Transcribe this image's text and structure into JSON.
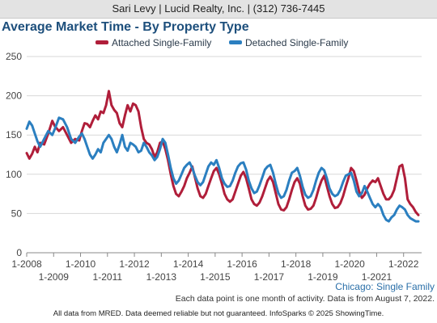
{
  "header": {
    "agent_text": "Sari Levy | Lucid Realty, Inc. | (312) 736-7445"
  },
  "chart_data": {
    "type": "line",
    "title": "Average Market Time - By Property Type",
    "xlabel": "",
    "ylabel": "",
    "xlim": [
      2008.0,
      2022.67
    ],
    "ylim": [
      0,
      250
    ],
    "yticks": [
      0,
      50,
      100,
      150,
      200,
      250
    ],
    "xticks_top": [
      "1-2008",
      "1-2010",
      "1-2012",
      "1-2014",
      "1-2016",
      "1-2018",
      "1-2020",
      "1-2022"
    ],
    "xticks_bottom": [
      "1-2009",
      "1-2011",
      "1-2013",
      "1-2015",
      "1-2017",
      "1-2019",
      "1-2021"
    ],
    "grid": true,
    "legend_position": "top",
    "series": [
      {
        "name": "Attached Single-Family",
        "color": "#b01e3a",
        "points": [
          [
            2008.0,
            127
          ],
          [
            2008.1,
            120
          ],
          [
            2008.2,
            126
          ],
          [
            2008.3,
            135
          ],
          [
            2008.4,
            128
          ],
          [
            2008.5,
            140
          ],
          [
            2008.65,
            138
          ],
          [
            2008.8,
            152
          ],
          [
            2008.95,
            168
          ],
          [
            2009.05,
            161
          ],
          [
            2009.2,
            155
          ],
          [
            2009.35,
            160
          ],
          [
            2009.5,
            150
          ],
          [
            2009.65,
            140
          ],
          [
            2009.8,
            145
          ],
          [
            2009.95,
            143
          ],
          [
            2010.05,
            155
          ],
          [
            2010.15,
            165
          ],
          [
            2010.25,
            164
          ],
          [
            2010.35,
            160
          ],
          [
            2010.45,
            168
          ],
          [
            2010.55,
            175
          ],
          [
            2010.65,
            170
          ],
          [
            2010.75,
            180
          ],
          [
            2010.85,
            178
          ],
          [
            2010.95,
            188
          ],
          [
            2011.05,
            206
          ],
          [
            2011.15,
            188
          ],
          [
            2011.25,
            182
          ],
          [
            2011.35,
            178
          ],
          [
            2011.45,
            165
          ],
          [
            2011.55,
            160
          ],
          [
            2011.65,
            175
          ],
          [
            2011.75,
            188
          ],
          [
            2011.85,
            180
          ],
          [
            2011.95,
            190
          ],
          [
            2012.05,
            188
          ],
          [
            2012.15,
            180
          ],
          [
            2012.25,
            160
          ],
          [
            2012.35,
            145
          ],
          [
            2012.45,
            140
          ],
          [
            2012.55,
            138
          ],
          [
            2012.65,
            132
          ],
          [
            2012.75,
            122
          ],
          [
            2012.85,
            128
          ],
          [
            2012.95,
            140
          ],
          [
            2013.05,
            142
          ],
          [
            2013.15,
            132
          ],
          [
            2013.25,
            118
          ],
          [
            2013.35,
            100
          ],
          [
            2013.45,
            85
          ],
          [
            2013.55,
            75
          ],
          [
            2013.65,
            72
          ],
          [
            2013.75,
            78
          ],
          [
            2013.85,
            85
          ],
          [
            2013.95,
            95
          ],
          [
            2014.05,
            102
          ],
          [
            2014.15,
            110
          ],
          [
            2014.25,
            96
          ],
          [
            2014.35,
            82
          ],
          [
            2014.45,
            72
          ],
          [
            2014.55,
            70
          ],
          [
            2014.65,
            75
          ],
          [
            2014.75,
            85
          ],
          [
            2014.85,
            95
          ],
          [
            2014.95,
            104
          ],
          [
            2015.05,
            108
          ],
          [
            2015.15,
            100
          ],
          [
            2015.25,
            88
          ],
          [
            2015.35,
            75
          ],
          [
            2015.45,
            68
          ],
          [
            2015.55,
            65
          ],
          [
            2015.65,
            68
          ],
          [
            2015.75,
            78
          ],
          [
            2015.85,
            88
          ],
          [
            2015.95,
            98
          ],
          [
            2016.05,
            103
          ],
          [
            2016.15,
            95
          ],
          [
            2016.25,
            82
          ],
          [
            2016.35,
            68
          ],
          [
            2016.45,
            62
          ],
          [
            2016.55,
            60
          ],
          [
            2016.65,
            64
          ],
          [
            2016.75,
            72
          ],
          [
            2016.85,
            82
          ],
          [
            2016.95,
            92
          ],
          [
            2017.05,
            97
          ],
          [
            2017.15,
            90
          ],
          [
            2017.25,
            76
          ],
          [
            2017.35,
            62
          ],
          [
            2017.45,
            55
          ],
          [
            2017.55,
            54
          ],
          [
            2017.65,
            58
          ],
          [
            2017.75,
            68
          ],
          [
            2017.85,
            80
          ],
          [
            2017.95,
            90
          ],
          [
            2018.05,
            95
          ],
          [
            2018.15,
            88
          ],
          [
            2018.25,
            72
          ],
          [
            2018.35,
            60
          ],
          [
            2018.45,
            55
          ],
          [
            2018.55,
            56
          ],
          [
            2018.65,
            60
          ],
          [
            2018.75,
            70
          ],
          [
            2018.85,
            82
          ],
          [
            2018.95,
            92
          ],
          [
            2019.05,
            98
          ],
          [
            2019.15,
            85
          ],
          [
            2019.25,
            72
          ],
          [
            2019.35,
            62
          ],
          [
            2019.45,
            57
          ],
          [
            2019.55,
            58
          ],
          [
            2019.65,
            63
          ],
          [
            2019.75,
            72
          ],
          [
            2019.85,
            84
          ],
          [
            2019.95,
            95
          ],
          [
            2020.05,
            108
          ],
          [
            2020.15,
            104
          ],
          [
            2020.25,
            92
          ],
          [
            2020.35,
            78
          ],
          [
            2020.45,
            70
          ],
          [
            2020.55,
            74
          ],
          [
            2020.65,
            82
          ],
          [
            2020.75,
            88
          ],
          [
            2020.85,
            92
          ],
          [
            2020.95,
            90
          ],
          [
            2021.05,
            95
          ],
          [
            2021.15,
            85
          ],
          [
            2021.25,
            75
          ],
          [
            2021.35,
            68
          ],
          [
            2021.45,
            68
          ],
          [
            2021.55,
            72
          ],
          [
            2021.65,
            80
          ],
          [
            2021.75,
            95
          ],
          [
            2021.85,
            110
          ],
          [
            2021.95,
            112
          ],
          [
            2022.05,
            95
          ],
          [
            2022.15,
            68
          ],
          [
            2022.25,
            62
          ],
          [
            2022.35,
            58
          ],
          [
            2022.45,
            52
          ],
          [
            2022.55,
            48
          ]
        ]
      },
      {
        "name": "Detached Single-Family",
        "color": "#2b7fc0",
        "points": [
          [
            2008.0,
            158
          ],
          [
            2008.1,
            167
          ],
          [
            2008.2,
            162
          ],
          [
            2008.3,
            152
          ],
          [
            2008.4,
            142
          ],
          [
            2008.5,
            135
          ],
          [
            2008.65,
            145
          ],
          [
            2008.8,
            155
          ],
          [
            2008.95,
            150
          ],
          [
            2009.05,
            158
          ],
          [
            2009.2,
            172
          ],
          [
            2009.35,
            170
          ],
          [
            2009.5,
            160
          ],
          [
            2009.65,
            145
          ],
          [
            2009.8,
            140
          ],
          [
            2009.95,
            148
          ],
          [
            2010.05,
            152
          ],
          [
            2010.15,
            145
          ],
          [
            2010.25,
            135
          ],
          [
            2010.35,
            125
          ],
          [
            2010.45,
            120
          ],
          [
            2010.55,
            125
          ],
          [
            2010.65,
            132
          ],
          [
            2010.75,
            128
          ],
          [
            2010.85,
            140
          ],
          [
            2010.95,
            145
          ],
          [
            2011.05,
            150
          ],
          [
            2011.15,
            145
          ],
          [
            2011.25,
            135
          ],
          [
            2011.35,
            128
          ],
          [
            2011.45,
            138
          ],
          [
            2011.55,
            150
          ],
          [
            2011.65,
            135
          ],
          [
            2011.75,
            130
          ],
          [
            2011.85,
            140
          ],
          [
            2011.95,
            138
          ],
          [
            2012.05,
            135
          ],
          [
            2012.15,
            128
          ],
          [
            2012.25,
            130
          ],
          [
            2012.35,
            140
          ],
          [
            2012.45,
            135
          ],
          [
            2012.55,
            128
          ],
          [
            2012.65,
            124
          ],
          [
            2012.75,
            118
          ],
          [
            2012.85,
            122
          ],
          [
            2012.95,
            132
          ],
          [
            2013.05,
            145
          ],
          [
            2013.15,
            140
          ],
          [
            2013.25,
            125
          ],
          [
            2013.35,
            108
          ],
          [
            2013.45,
            95
          ],
          [
            2013.55,
            88
          ],
          [
            2013.65,
            92
          ],
          [
            2013.75,
            100
          ],
          [
            2013.85,
            108
          ],
          [
            2013.95,
            112
          ],
          [
            2014.05,
            115
          ],
          [
            2014.15,
            108
          ],
          [
            2014.25,
            98
          ],
          [
            2014.35,
            90
          ],
          [
            2014.45,
            86
          ],
          [
            2014.55,
            90
          ],
          [
            2014.65,
            100
          ],
          [
            2014.75,
            110
          ],
          [
            2014.85,
            115
          ],
          [
            2014.95,
            112
          ],
          [
            2015.05,
            118
          ],
          [
            2015.15,
            108
          ],
          [
            2015.25,
            95
          ],
          [
            2015.35,
            88
          ],
          [
            2015.45,
            84
          ],
          [
            2015.55,
            85
          ],
          [
            2015.65,
            92
          ],
          [
            2015.75,
            102
          ],
          [
            2015.85,
            110
          ],
          [
            2015.95,
            114
          ],
          [
            2016.05,
            115
          ],
          [
            2016.15,
            106
          ],
          [
            2016.25,
            92
          ],
          [
            2016.35,
            82
          ],
          [
            2016.45,
            76
          ],
          [
            2016.55,
            78
          ],
          [
            2016.65,
            86
          ],
          [
            2016.75,
            96
          ],
          [
            2016.85,
            106
          ],
          [
            2016.95,
            110
          ],
          [
            2017.05,
            112
          ],
          [
            2017.15,
            102
          ],
          [
            2017.25,
            88
          ],
          [
            2017.35,
            76
          ],
          [
            2017.45,
            70
          ],
          [
            2017.55,
            72
          ],
          [
            2017.65,
            80
          ],
          [
            2017.75,
            92
          ],
          [
            2017.85,
            102
          ],
          [
            2017.95,
            104
          ],
          [
            2018.05,
            108
          ],
          [
            2018.15,
            98
          ],
          [
            2018.25,
            84
          ],
          [
            2018.35,
            74
          ],
          [
            2018.45,
            70
          ],
          [
            2018.55,
            72
          ],
          [
            2018.65,
            80
          ],
          [
            2018.75,
            92
          ],
          [
            2018.85,
            102
          ],
          [
            2018.95,
            108
          ],
          [
            2019.05,
            105
          ],
          [
            2019.15,
            95
          ],
          [
            2019.25,
            82
          ],
          [
            2019.35,
            75
          ],
          [
            2019.45,
            72
          ],
          [
            2019.55,
            74
          ],
          [
            2019.65,
            80
          ],
          [
            2019.75,
            90
          ],
          [
            2019.85,
            98
          ],
          [
            2019.95,
            100
          ],
          [
            2020.05,
            102
          ],
          [
            2020.15,
            92
          ],
          [
            2020.25,
            78
          ],
          [
            2020.35,
            72
          ],
          [
            2020.45,
            76
          ],
          [
            2020.55,
            85
          ],
          [
            2020.65,
            78
          ],
          [
            2020.75,
            70
          ],
          [
            2020.85,
            62
          ],
          [
            2020.95,
            58
          ],
          [
            2021.05,
            62
          ],
          [
            2021.15,
            58
          ],
          [
            2021.25,
            48
          ],
          [
            2021.35,
            42
          ],
          [
            2021.45,
            40
          ],
          [
            2021.55,
            45
          ],
          [
            2021.65,
            48
          ],
          [
            2021.75,
            55
          ],
          [
            2021.85,
            60
          ],
          [
            2021.95,
            58
          ],
          [
            2022.05,
            55
          ],
          [
            2022.15,
            48
          ],
          [
            2022.25,
            44
          ],
          [
            2022.35,
            42
          ],
          [
            2022.45,
            40
          ],
          [
            2022.55,
            40
          ]
        ]
      }
    ]
  },
  "region_label": "Chicago: Single Family",
  "note": "Each data point is one month of activity. Data is from August 7, 2022.",
  "footer": "All data from MRED. Data deemed reliable but not guaranteed. InfoSparks © 2025 ShowingTime."
}
